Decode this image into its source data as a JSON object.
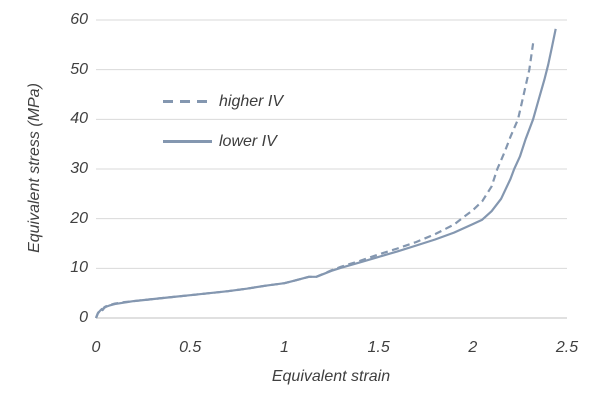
{
  "chart_data": {
    "type": "line",
    "title": "",
    "xlabel": "Equivalent strain",
    "ylabel": "Equivalent stress (MPa)",
    "xlim": [
      0,
      2.5
    ],
    "ylim": [
      0,
      60
    ],
    "xticks": [
      0,
      0.5,
      1,
      1.5,
      2,
      2.5
    ],
    "yticks": [
      0,
      10,
      20,
      30,
      40,
      50,
      60
    ],
    "grid": "horizontal-only",
    "legend_position": "inside-upper-left",
    "colors": {
      "series_line": "#8497B0",
      "gridline": "#D9D9D9",
      "axis_line": "#C0C0C0",
      "text": "#404040",
      "background": "#FFFFFF"
    },
    "series": [
      {
        "name": "higher IV",
        "style": "dashed",
        "points": [
          [
            0,
            0
          ],
          [
            0.005,
            0.5
          ],
          [
            0.01,
            1.0
          ],
          [
            0.02,
            1.5
          ],
          [
            0.03,
            1.9
          ],
          [
            0.035,
            1.7
          ],
          [
            0.045,
            2.2
          ],
          [
            0.055,
            2.4
          ],
          [
            0.07,
            2.6
          ],
          [
            0.1,
            2.9
          ],
          [
            0.15,
            3.2
          ],
          [
            0.2,
            3.4
          ],
          [
            0.3,
            3.8
          ],
          [
            0.4,
            4.2
          ],
          [
            0.5,
            4.6
          ],
          [
            0.6,
            5.0
          ],
          [
            0.7,
            5.4
          ],
          [
            0.8,
            5.9
          ],
          [
            0.9,
            6.5
          ],
          [
            1.0,
            7.0
          ],
          [
            1.05,
            7.5
          ],
          [
            1.1,
            8.0
          ],
          [
            1.13,
            8.3
          ],
          [
            1.17,
            8.3
          ],
          [
            1.25,
            9.6
          ],
          [
            1.3,
            10.3
          ],
          [
            1.4,
            11.5
          ],
          [
            1.5,
            12.8
          ],
          [
            1.6,
            14.0
          ],
          [
            1.7,
            15.3
          ],
          [
            1.8,
            16.9
          ],
          [
            1.9,
            18.8
          ],
          [
            1.94,
            20.0
          ],
          [
            2.0,
            21.7
          ],
          [
            2.05,
            23.5
          ],
          [
            2.1,
            26.5
          ],
          [
            2.13,
            30.0
          ],
          [
            2.17,
            33.5
          ],
          [
            2.2,
            36.5
          ],
          [
            2.24,
            40.0
          ],
          [
            2.27,
            45.0
          ],
          [
            2.3,
            50.0
          ],
          [
            2.32,
            55.3
          ]
        ]
      },
      {
        "name": "lower IV",
        "style": "solid",
        "points": [
          [
            0,
            0
          ],
          [
            0.005,
            0.4
          ],
          [
            0.01,
            0.9
          ],
          [
            0.02,
            1.4
          ],
          [
            0.03,
            1.8
          ],
          [
            0.035,
            1.6
          ],
          [
            0.045,
            2.1
          ],
          [
            0.055,
            2.3
          ],
          [
            0.07,
            2.5
          ],
          [
            0.1,
            2.8
          ],
          [
            0.15,
            3.1
          ],
          [
            0.2,
            3.4
          ],
          [
            0.3,
            3.8
          ],
          [
            0.4,
            4.2
          ],
          [
            0.5,
            4.6
          ],
          [
            0.6,
            5.0
          ],
          [
            0.7,
            5.4
          ],
          [
            0.8,
            5.9
          ],
          [
            0.9,
            6.5
          ],
          [
            1.0,
            7.0
          ],
          [
            1.05,
            7.5
          ],
          [
            1.1,
            8.0
          ],
          [
            1.13,
            8.3
          ],
          [
            1.17,
            8.3
          ],
          [
            1.25,
            9.5
          ],
          [
            1.3,
            10.1
          ],
          [
            1.4,
            11.2
          ],
          [
            1.5,
            12.3
          ],
          [
            1.6,
            13.4
          ],
          [
            1.7,
            14.6
          ],
          [
            1.8,
            15.8
          ],
          [
            1.9,
            17.2
          ],
          [
            2.0,
            18.9
          ],
          [
            2.05,
            19.8
          ],
          [
            2.1,
            21.5
          ],
          [
            2.15,
            24.0
          ],
          [
            2.2,
            28.0
          ],
          [
            2.22,
            30.0
          ],
          [
            2.25,
            32.5
          ],
          [
            2.28,
            36.0
          ],
          [
            2.32,
            40.0
          ],
          [
            2.35,
            44.0
          ],
          [
            2.38,
            48.0
          ],
          [
            2.4,
            51.0
          ],
          [
            2.42,
            54.5
          ],
          [
            2.44,
            58.2
          ]
        ]
      }
    ]
  }
}
